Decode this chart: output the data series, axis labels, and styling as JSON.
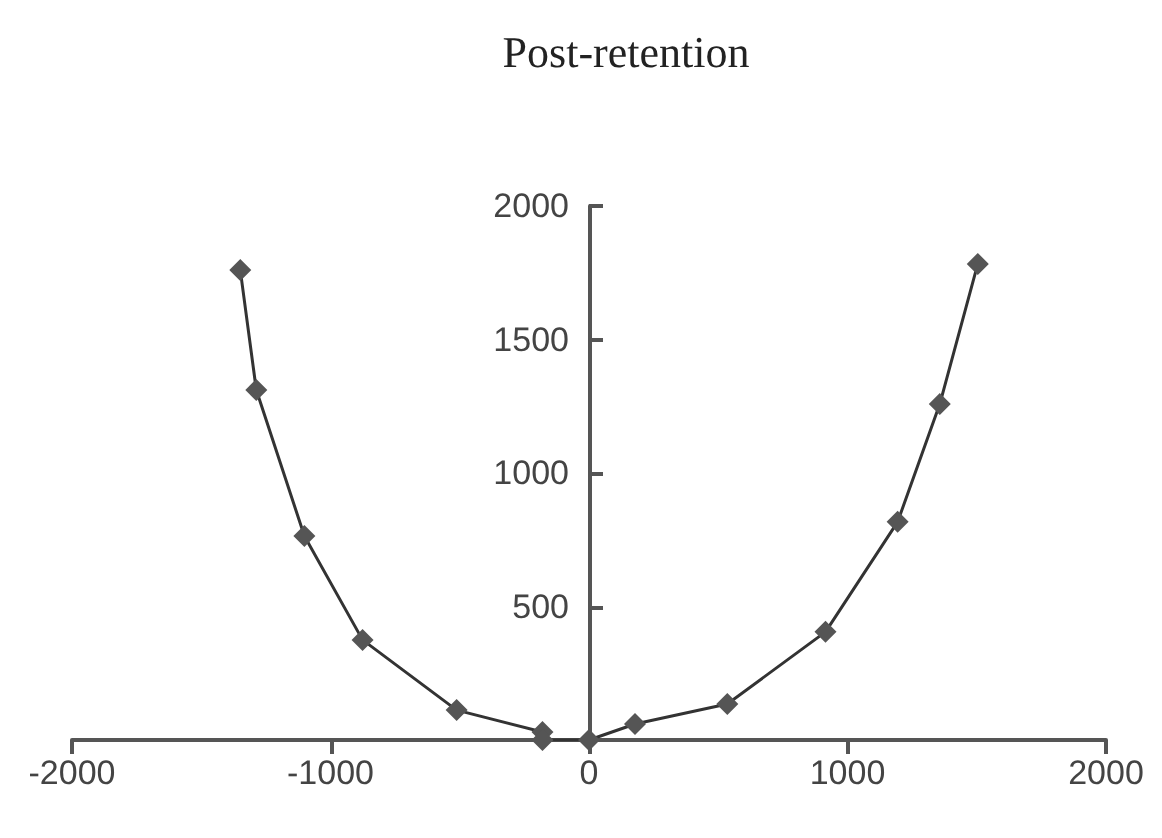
{
  "chart_data": {
    "type": "line",
    "title": "Post-retention",
    "series": [
      {
        "color": "#555555",
        "x": [
          -1349,
          -1287,
          -1101,
          -876,
          -512,
          -180,
          -180,
          0,
          178,
          535,
          915,
          1194,
          1357,
          1504
        ],
        "values": [
          1760,
          1311,
          764,
          375,
          112,
          30,
          0,
          0,
          60,
          135,
          405,
          817,
          1258,
          1783
        ]
      }
    ],
    "xlim": [
      -2000,
      2000
    ],
    "xticks": [
      -2000,
      -1000,
      0,
      1000,
      2000
    ],
    "ylim": [
      0,
      2000
    ],
    "yticks": [
      500,
      1000,
      1500,
      2000
    ],
    "marker": "diamond",
    "line_style": "solid"
  }
}
